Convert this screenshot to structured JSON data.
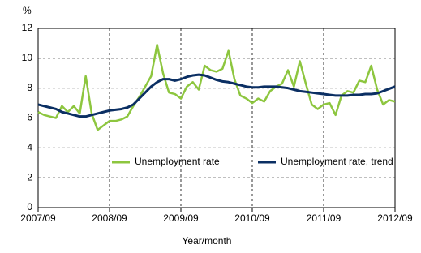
{
  "chart_data": {
    "type": "line",
    "y_label": "%",
    "x_label": "Year/month",
    "categories": [
      "2007/09",
      null,
      null,
      null,
      null,
      null,
      null,
      null,
      null,
      null,
      null,
      null,
      "2008/09",
      null,
      null,
      null,
      null,
      null,
      null,
      null,
      null,
      null,
      null,
      null,
      "2009/09",
      null,
      null,
      null,
      null,
      null,
      null,
      null,
      null,
      null,
      null,
      null,
      "2010/09",
      null,
      null,
      null,
      null,
      null,
      null,
      null,
      null,
      null,
      null,
      null,
      "2011/09",
      null,
      null,
      null,
      null,
      null,
      null,
      null,
      null,
      null,
      null,
      null,
      "2012/09"
    ],
    "series": [
      {
        "name": "Unemployment rate",
        "color": "#8dc63f",
        "values": [
          6.4,
          6.2,
          6.1,
          6.0,
          6.8,
          6.4,
          6.8,
          6.3,
          8.8,
          6.3,
          5.2,
          5.5,
          5.8,
          5.8,
          5.9,
          6.1,
          6.8,
          7.4,
          8.1,
          8.8,
          10.9,
          9.0,
          7.7,
          7.6,
          7.3,
          8.1,
          8.4,
          7.9,
          9.5,
          9.2,
          9.1,
          9.3,
          10.5,
          8.6,
          7.5,
          7.3,
          7.0,
          7.3,
          7.1,
          7.8,
          8.1,
          8.3,
          9.2,
          8.1,
          9.8,
          8.3,
          6.9,
          6.6,
          6.9,
          7.0,
          6.2,
          7.5,
          7.8,
          7.7,
          8.5,
          8.4,
          9.5,
          7.9,
          6.9,
          7.2,
          7.1
        ]
      },
      {
        "name": "Unemployment rate, trend",
        "color": "#0b2f63",
        "values": [
          6.9,
          6.8,
          6.7,
          6.6,
          6.4,
          6.3,
          6.2,
          6.1,
          6.1,
          6.2,
          6.3,
          6.4,
          6.5,
          6.55,
          6.6,
          6.7,
          6.9,
          7.3,
          7.7,
          8.1,
          8.4,
          8.6,
          8.6,
          8.5,
          8.6,
          8.75,
          8.85,
          8.9,
          8.85,
          8.7,
          8.55,
          8.45,
          8.4,
          8.3,
          8.2,
          8.1,
          8.05,
          8.05,
          8.1,
          8.1,
          8.1,
          8.05,
          8.0,
          7.9,
          7.8,
          7.75,
          7.7,
          7.65,
          7.6,
          7.55,
          7.5,
          7.5,
          7.5,
          7.55,
          7.55,
          7.6,
          7.6,
          7.65,
          7.8,
          7.95,
          8.1
        ]
      }
    ],
    "ylim": [
      0,
      12
    ],
    "yticks": [
      0,
      2,
      4,
      6,
      8,
      10,
      12
    ],
    "grid": true
  }
}
